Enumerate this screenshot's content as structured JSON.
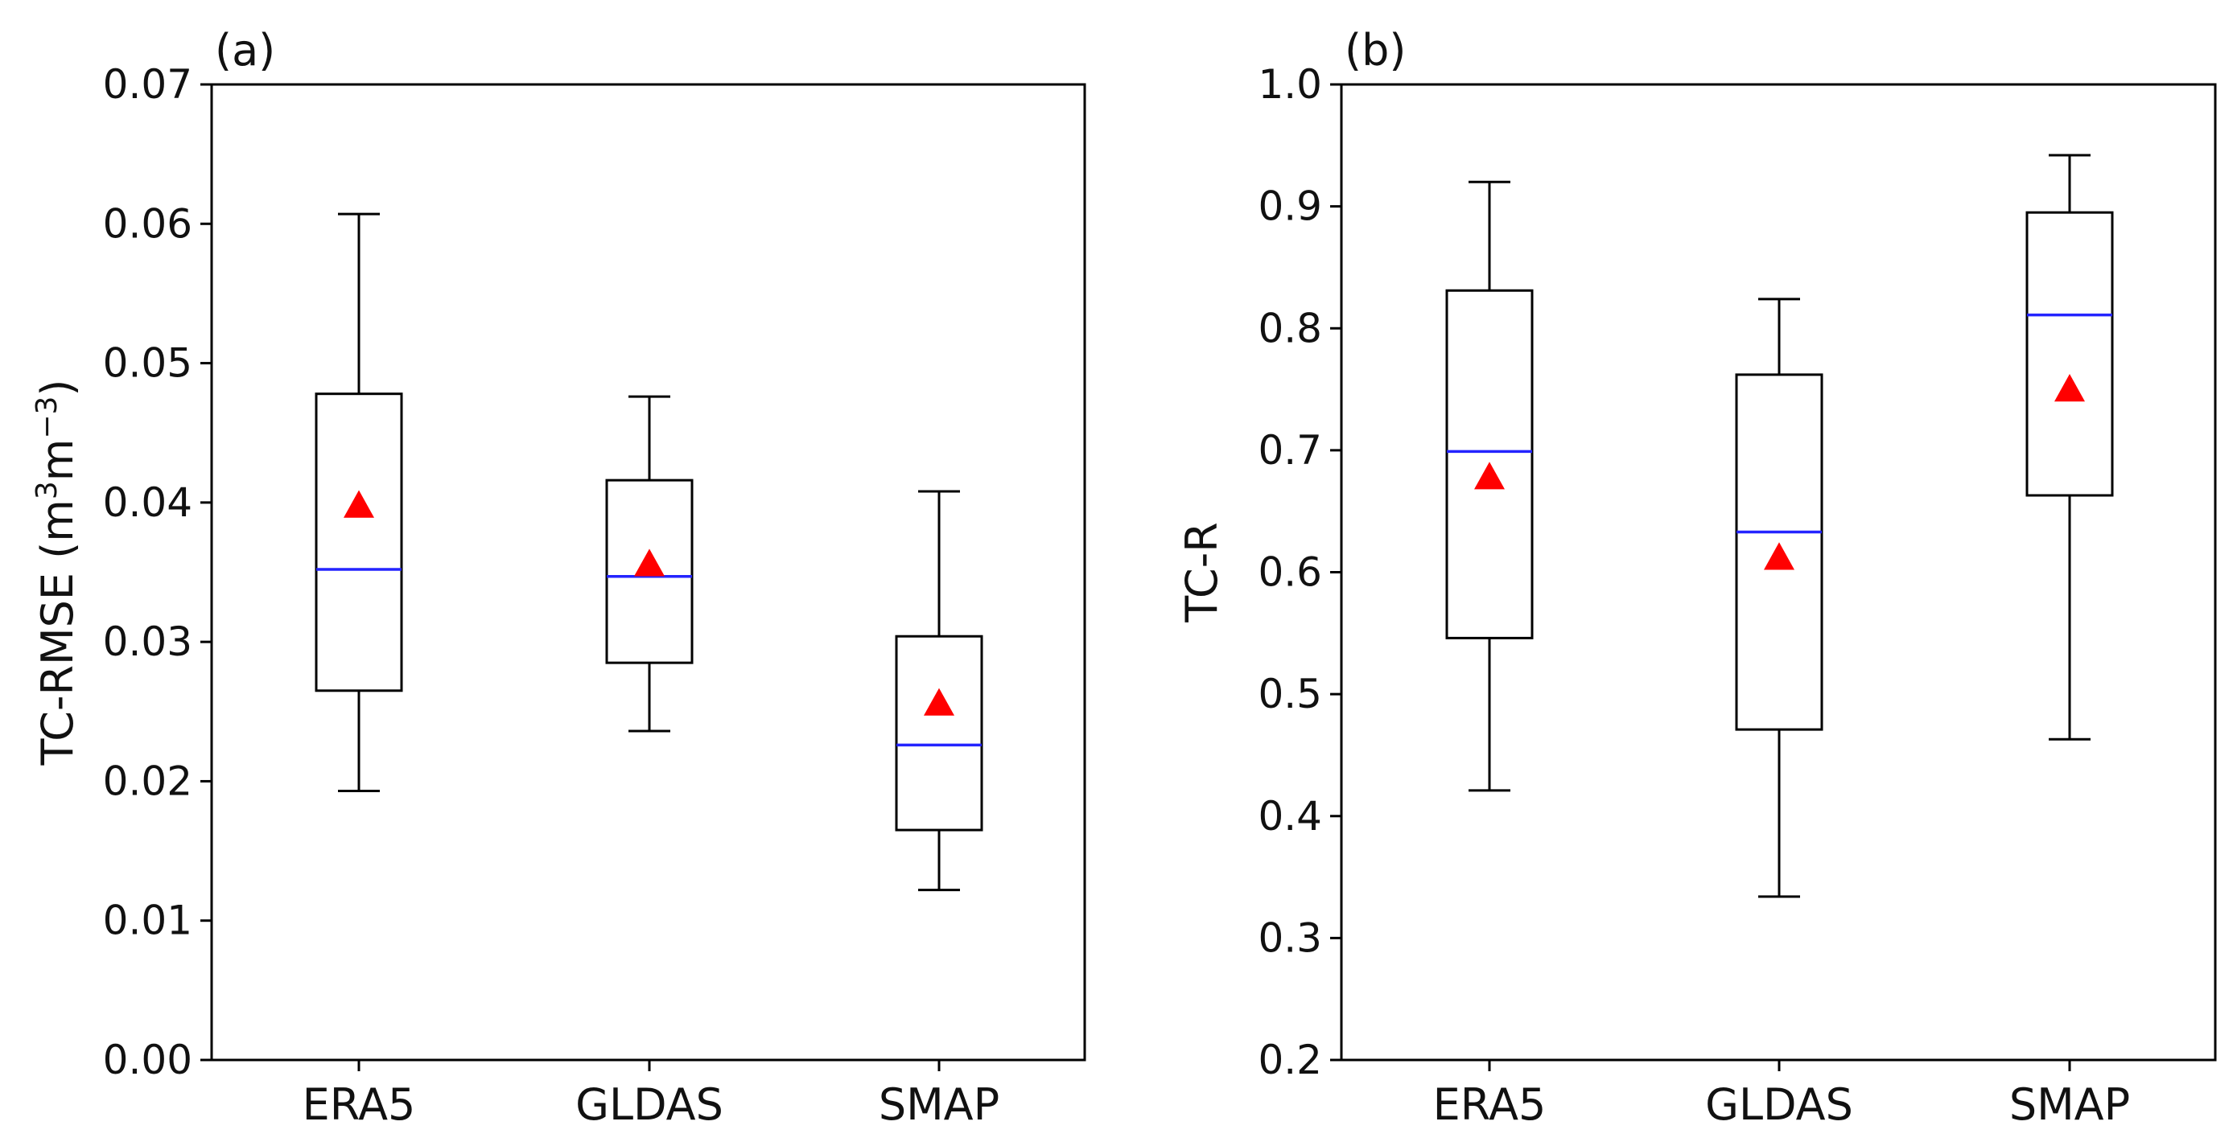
{
  "chart_data": [
    {
      "type": "boxplot",
      "panel_label": "(a)",
      "ylabel": "TC-RMSE (m",
      "ylabel_unit_suffix": "m",
      "ylabel_sup1": "3",
      "ylabel_sup2": "−3",
      "ylabel_close": ")",
      "ylim": [
        0.0,
        0.07
      ],
      "yticks": [
        0.0,
        0.01,
        0.02,
        0.03,
        0.04,
        0.05,
        0.06,
        0.07
      ],
      "ytick_labels": [
        "0.00",
        "0.01",
        "0.02",
        "0.03",
        "0.04",
        "0.05",
        "0.06",
        "0.07"
      ],
      "categories": [
        "ERA5",
        "GLDAS",
        "SMAP"
      ],
      "boxes": [
        {
          "whisker_low": 0.0193,
          "q1": 0.0265,
          "median": 0.0352,
          "q3": 0.0478,
          "whisker_high": 0.0607,
          "mean": 0.0397
        },
        {
          "whisker_low": 0.0236,
          "q1": 0.0285,
          "median": 0.0347,
          "q3": 0.0416,
          "whisker_high": 0.0476,
          "mean": 0.0355
        },
        {
          "whisker_low": 0.0122,
          "q1": 0.0165,
          "median": 0.0226,
          "q3": 0.0304,
          "whisker_high": 0.0408,
          "mean": 0.0255
        }
      ]
    },
    {
      "type": "boxplot",
      "panel_label": "(b)",
      "ylabel": "TC-R",
      "ylim": [
        0.2,
        1.0
      ],
      "yticks": [
        0.2,
        0.3,
        0.4,
        0.5,
        0.6,
        0.7,
        0.8,
        0.9,
        1.0
      ],
      "ytick_labels": [
        "0.2",
        "0.3",
        "0.4",
        "0.5",
        "0.6",
        "0.7",
        "0.8",
        "0.9",
        "1.0"
      ],
      "categories": [
        "ERA5",
        "GLDAS",
        "SMAP"
      ],
      "boxes": [
        {
          "whisker_low": 0.421,
          "q1": 0.546,
          "median": 0.699,
          "q3": 0.831,
          "whisker_high": 0.92,
          "mean": 0.677
        },
        {
          "whisker_low": 0.334,
          "q1": 0.471,
          "median": 0.633,
          "q3": 0.762,
          "whisker_high": 0.824,
          "mean": 0.611
        },
        {
          "whisker_low": 0.463,
          "q1": 0.663,
          "median": 0.811,
          "q3": 0.895,
          "whisker_high": 0.942,
          "mean": 0.749
        }
      ]
    }
  ],
  "colors": {
    "axis": "#000000",
    "box": "#000000",
    "median": "#2424ff",
    "mean": "#ff0000"
  }
}
